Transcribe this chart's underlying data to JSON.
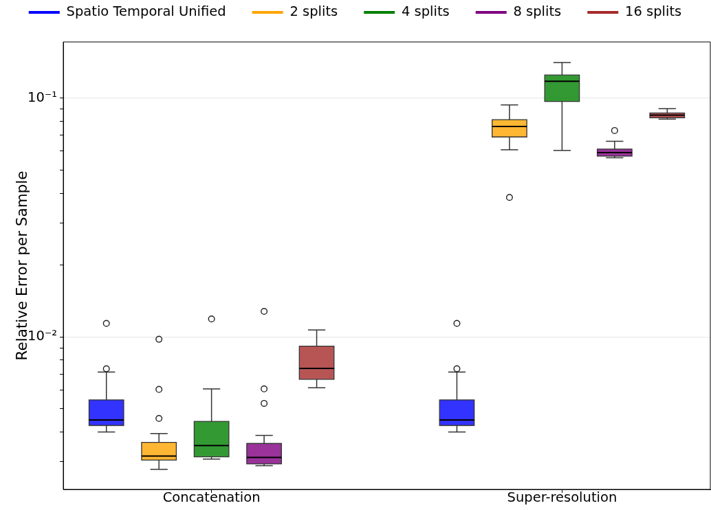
{
  "chart_data": {
    "type": "box",
    "categories": [
      "Concatenation",
      "Super-resolution"
    ],
    "ylabel": "Relative Error per Sample",
    "log": true,
    "ylim": [
      0.0023,
      0.172
    ],
    "yticks": [
      {
        "value": 0.003,
        "label": null
      },
      {
        "value": 0.004,
        "label": null
      },
      {
        "value": 0.005,
        "label": null
      },
      {
        "value": 0.006,
        "label": null
      },
      {
        "value": 0.007,
        "label": null
      },
      {
        "value": 0.008,
        "label": null
      },
      {
        "value": 0.009,
        "label": null
      },
      {
        "value": 0.01,
        "label": "10⁻²"
      },
      {
        "value": 0.02,
        "label": null
      },
      {
        "value": 0.03,
        "label": null
      },
      {
        "value": 0.04,
        "label": null
      },
      {
        "value": 0.05,
        "label": null
      },
      {
        "value": 0.06,
        "label": null
      },
      {
        "value": 0.07,
        "label": null
      },
      {
        "value": 0.08,
        "label": null
      },
      {
        "value": 0.09,
        "label": null
      },
      {
        "value": 0.1,
        "label": "10⁻¹"
      }
    ],
    "grid": "y",
    "legend": "top",
    "series": [
      {
        "name": "Spatio Temporal Unified",
        "color": "#0000ff",
        "boxes": [
          {
            "low": 0.004,
            "q1": 0.00426,
            "median": 0.00449,
            "q3": 0.00545,
            "high": 0.00713,
            "outliers": [
              0.00736,
              0.0114
            ]
          },
          {
            "low": 0.004,
            "q1": 0.00426,
            "median": 0.00449,
            "q3": 0.00545,
            "high": 0.00713,
            "outliers": [
              0.00736,
              0.0114
            ]
          }
        ]
      },
      {
        "name": "2 splits",
        "color": "#ffa500",
        "boxes": [
          {
            "low": 0.00279,
            "q1": 0.00305,
            "median": 0.00317,
            "q3": 0.00362,
            "high": 0.00394,
            "outliers": [
              0.00456,
              0.00603,
              0.00978
            ]
          },
          {
            "low": 0.0608,
            "q1": 0.0688,
            "median": 0.0761,
            "q3": 0.0813,
            "high": 0.0937,
            "outliers": [
              0.0384
            ]
          }
        ]
      },
      {
        "name": "4 splits",
        "color": "#008000",
        "boxes": [
          {
            "low": 0.00308,
            "q1": 0.00315,
            "median": 0.00351,
            "q3": 0.00443,
            "high": 0.00606,
            "outliers": [
              0.0119
            ]
          },
          {
            "low": 0.0604,
            "q1": 0.0969,
            "median": 0.1176,
            "q3": 0.125,
            "high": 0.141
          }
        ]
      },
      {
        "name": "8 splits",
        "color": "#800080",
        "boxes": [
          {
            "low": 0.00289,
            "q1": 0.00294,
            "median": 0.00313,
            "q3": 0.00358,
            "high": 0.00387,
            "outliers": [
              0.00527,
              0.00606,
              0.0128
            ]
          },
          {
            "low": 0.0563,
            "q1": 0.0572,
            "median": 0.0592,
            "q3": 0.0612,
            "high": 0.066,
            "outliers": [
              0.0732
            ]
          }
        ]
      },
      {
        "name": "16 splits",
        "color": "#a52a2a",
        "boxes": [
          {
            "low": 0.00613,
            "q1": 0.00665,
            "median": 0.00738,
            "q3": 0.00915,
            "high": 0.0107
          },
          {
            "low": 0.0817,
            "q1": 0.0828,
            "median": 0.0849,
            "q3": 0.0867,
            "high": 0.0904
          }
        ]
      }
    ]
  }
}
